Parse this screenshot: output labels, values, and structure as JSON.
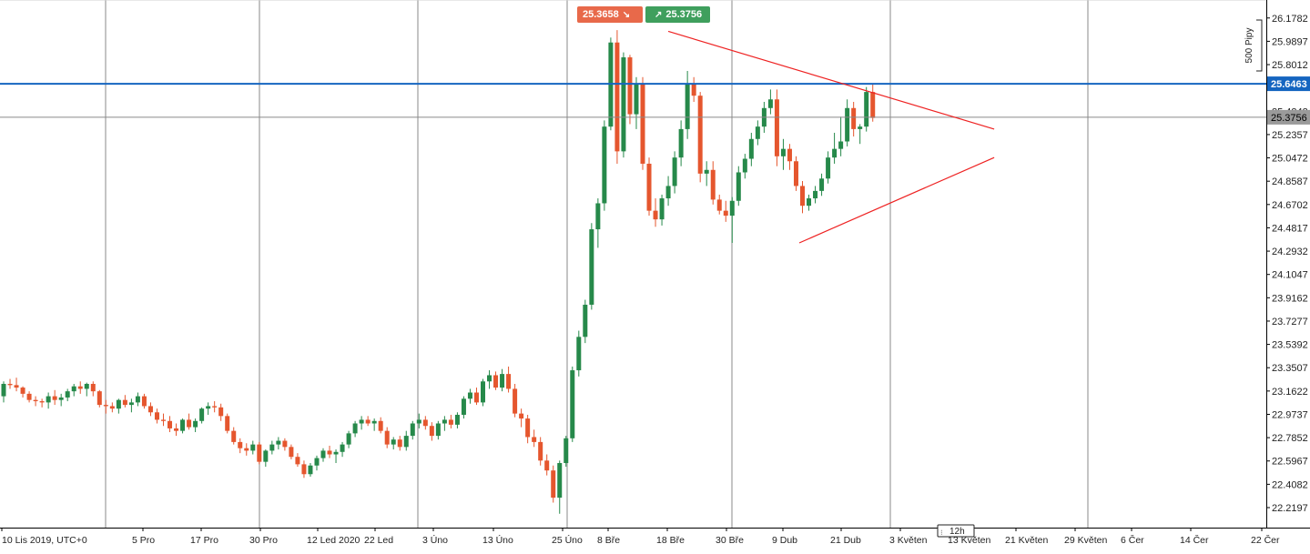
{
  "chart_data": {
    "type": "candlestick",
    "x_ticks": [
      "10 Lis 2019, UTC+0",
      "5 Pro",
      "17 Pro",
      "30 Pro",
      "12 Led 2020",
      "22 Led",
      "3 Úno",
      "13 Úno",
      "25 Úno",
      "8 Bře",
      "18 Bře",
      "30 Bře",
      "9 Dub",
      "21 Dub",
      "3 Květen",
      "13 Květen",
      "21 Květen",
      "29 Květen",
      "6 Čer",
      "14 Čer",
      "22 Čer"
    ],
    "y_ticks": [
      "26.1782",
      "25.9897",
      "25.8012",
      "25.6463",
      "25.4242",
      "25.3756",
      "25.2357",
      "25.0472",
      "24.8587",
      "24.6702",
      "24.4817",
      "24.2932",
      "24.1047",
      "23.9162",
      "23.7277",
      "23.5392",
      "23.3507",
      "23.1622",
      "22.9737",
      "22.7852",
      "22.5967",
      "22.4082",
      "22.2197"
    ],
    "ylim": [
      22.1,
      26.3
    ],
    "timeframe": "12h",
    "pip_scale_label": "500 Pipy",
    "horizontal_level": 25.6463,
    "current_price": 25.3756,
    "sell_price": "25.3658",
    "buy_price": "25.3756",
    "candles": [
      [
        23.12,
        23.24,
        23.07,
        23.22
      ],
      [
        23.22,
        23.26,
        23.18,
        23.21
      ],
      [
        23.21,
        23.27,
        23.16,
        23.19
      ],
      [
        23.19,
        23.2,
        23.11,
        23.14
      ],
      [
        23.14,
        23.16,
        23.07,
        23.09
      ],
      [
        23.09,
        23.12,
        23.04,
        23.08
      ],
      [
        23.08,
        23.1,
        23.03,
        23.07
      ],
      [
        23.07,
        23.15,
        23.02,
        23.12
      ],
      [
        23.12,
        23.17,
        23.05,
        23.09
      ],
      [
        23.09,
        23.14,
        23.04,
        23.11
      ],
      [
        23.11,
        23.18,
        23.08,
        23.16
      ],
      [
        23.16,
        23.22,
        23.12,
        23.2
      ],
      [
        23.2,
        23.24,
        23.14,
        23.18
      ],
      [
        23.18,
        23.23,
        23.12,
        23.22
      ],
      [
        23.22,
        23.24,
        23.12,
        23.16
      ],
      [
        23.16,
        23.17,
        23.03,
        23.05
      ],
      [
        23.05,
        23.09,
        22.98,
        23.04
      ],
      [
        23.04,
        23.07,
        22.99,
        23.02
      ],
      [
        23.02,
        23.1,
        22.98,
        23.09
      ],
      [
        23.09,
        23.13,
        23.03,
        23.05
      ],
      [
        23.05,
        23.1,
        22.99,
        23.07
      ],
      [
        23.07,
        23.15,
        23.04,
        23.12
      ],
      [
        23.12,
        23.14,
        23.02,
        23.04
      ],
      [
        23.04,
        23.07,
        22.96,
        22.99
      ],
      [
        22.99,
        23.02,
        22.9,
        22.93
      ],
      [
        22.93,
        22.98,
        22.88,
        22.92
      ],
      [
        22.92,
        22.96,
        22.83,
        22.86
      ],
      [
        22.86,
        22.9,
        22.8,
        22.84
      ],
      [
        22.84,
        22.94,
        22.82,
        22.93
      ],
      [
        22.93,
        22.98,
        22.85,
        22.87
      ],
      [
        22.87,
        22.94,
        22.83,
        22.92
      ],
      [
        22.92,
        23.03,
        22.9,
        23.02
      ],
      [
        23.02,
        23.07,
        22.97,
        23.04
      ],
      [
        23.04,
        23.08,
        22.99,
        23.03
      ],
      [
        23.03,
        23.06,
        22.92,
        22.96
      ],
      [
        22.96,
        22.98,
        22.82,
        22.84
      ],
      [
        22.84,
        22.87,
        22.73,
        22.75
      ],
      [
        22.75,
        22.78,
        22.66,
        22.7
      ],
      [
        22.7,
        22.74,
        22.64,
        22.68
      ],
      [
        22.68,
        22.76,
        22.65,
        22.73
      ],
      [
        22.73,
        22.75,
        22.57,
        22.59
      ],
      [
        22.59,
        22.69,
        22.55,
        22.68
      ],
      [
        22.68,
        22.76,
        22.65,
        22.73
      ],
      [
        22.73,
        22.79,
        22.69,
        22.76
      ],
      [
        22.76,
        22.78,
        22.68,
        22.71
      ],
      [
        22.71,
        22.73,
        22.61,
        22.63
      ],
      [
        22.63,
        22.66,
        22.55,
        22.57
      ],
      [
        22.57,
        22.6,
        22.46,
        22.49
      ],
      [
        22.49,
        22.58,
        22.47,
        22.56
      ],
      [
        22.56,
        22.64,
        22.52,
        22.62
      ],
      [
        22.62,
        22.7,
        22.59,
        22.68
      ],
      [
        22.68,
        22.72,
        22.62,
        22.65
      ],
      [
        22.65,
        22.69,
        22.58,
        22.67
      ],
      [
        22.67,
        22.75,
        22.63,
        22.73
      ],
      [
        22.73,
        22.84,
        22.7,
        22.82
      ],
      [
        22.82,
        22.92,
        22.79,
        22.9
      ],
      [
        22.9,
        22.96,
        22.85,
        22.93
      ],
      [
        22.93,
        22.96,
        22.88,
        22.9
      ],
      [
        22.9,
        22.94,
        22.84,
        22.92
      ],
      [
        22.92,
        22.95,
        22.82,
        22.84
      ],
      [
        22.84,
        22.87,
        22.7,
        22.73
      ],
      [
        22.73,
        22.79,
        22.69,
        22.77
      ],
      [
        22.77,
        22.8,
        22.68,
        22.71
      ],
      [
        22.71,
        22.84,
        22.68,
        22.8
      ],
      [
        22.8,
        22.92,
        22.77,
        22.9
      ],
      [
        22.9,
        22.98,
        22.86,
        22.93
      ],
      [
        22.93,
        22.96,
        22.85,
        22.88
      ],
      [
        22.88,
        22.91,
        22.76,
        22.8
      ],
      [
        22.8,
        22.92,
        22.77,
        22.9
      ],
      [
        22.9,
        22.96,
        22.84,
        22.93
      ],
      [
        22.93,
        22.97,
        22.86,
        22.89
      ],
      [
        22.89,
        22.99,
        22.86,
        22.97
      ],
      [
        22.97,
        23.12,
        22.94,
        23.1
      ],
      [
        23.1,
        23.18,
        23.06,
        23.15
      ],
      [
        23.15,
        23.19,
        23.05,
        23.07
      ],
      [
        23.07,
        23.26,
        23.04,
        23.24
      ],
      [
        23.24,
        23.33,
        23.18,
        23.29
      ],
      [
        23.29,
        23.32,
        23.17,
        23.19
      ],
      [
        23.19,
        23.34,
        23.16,
        23.3
      ],
      [
        23.3,
        23.36,
        23.15,
        23.18
      ],
      [
        23.18,
        23.22,
        22.95,
        22.98
      ],
      [
        22.98,
        23.02,
        22.87,
        22.94
      ],
      [
        22.94,
        22.97,
        22.74,
        22.79
      ],
      [
        22.79,
        22.85,
        22.71,
        22.75
      ],
      [
        22.75,
        22.79,
        22.56,
        22.6
      ],
      [
        22.6,
        22.65,
        22.48,
        22.52
      ],
      [
        22.52,
        22.56,
        22.26,
        22.3
      ],
      [
        22.3,
        22.6,
        22.17,
        22.58
      ],
      [
        22.58,
        22.8,
        22.55,
        22.78
      ],
      [
        22.78,
        23.36,
        22.75,
        23.33
      ],
      [
        23.33,
        23.65,
        23.28,
        23.6
      ],
      [
        23.6,
        23.9,
        23.55,
        23.86
      ],
      [
        23.86,
        24.52,
        23.82,
        24.47
      ],
      [
        24.47,
        24.72,
        24.32,
        24.68
      ],
      [
        24.68,
        25.35,
        24.62,
        25.3
      ],
      [
        25.3,
        26.02,
        25.27,
        25.98
      ],
      [
        25.98,
        26.08,
        25.0,
        25.1
      ],
      [
        25.1,
        25.9,
        25.05,
        25.86
      ],
      [
        25.86,
        25.88,
        25.32,
        25.4
      ],
      [
        25.4,
        25.7,
        25.28,
        25.65
      ],
      [
        25.65,
        25.7,
        24.95,
        25.0
      ],
      [
        25.0,
        25.05,
        24.58,
        24.62
      ],
      [
        24.62,
        24.72,
        24.49,
        24.55
      ],
      [
        24.55,
        24.75,
        24.5,
        24.72
      ],
      [
        24.72,
        24.9,
        24.66,
        24.82
      ],
      [
        24.82,
        25.1,
        24.76,
        25.05
      ],
      [
        25.05,
        25.35,
        24.98,
        25.28
      ],
      [
        25.28,
        25.75,
        25.2,
        25.65
      ],
      [
        25.65,
        25.7,
        25.5,
        25.55
      ],
      [
        25.55,
        25.58,
        24.85,
        24.92
      ],
      [
        24.92,
        25.02,
        24.82,
        24.95
      ],
      [
        24.95,
        25.02,
        24.67,
        24.71
      ],
      [
        24.71,
        24.75,
        24.59,
        24.62
      ],
      [
        24.62,
        24.7,
        24.53,
        24.58
      ],
      [
        24.58,
        24.73,
        24.36,
        24.7
      ],
      [
        24.7,
        24.98,
        24.66,
        24.93
      ],
      [
        24.93,
        25.08,
        24.88,
        25.04
      ],
      [
        25.04,
        25.25,
        24.98,
        25.2
      ],
      [
        25.2,
        25.35,
        25.15,
        25.3
      ],
      [
        25.3,
        25.5,
        25.25,
        25.45
      ],
      [
        25.45,
        25.6,
        25.4,
        25.52
      ],
      [
        25.52,
        25.6,
        24.98,
        25.06
      ],
      [
        25.06,
        25.2,
        24.95,
        25.12
      ],
      [
        25.12,
        25.16,
        24.95,
        25.02
      ],
      [
        25.02,
        25.06,
        24.78,
        24.82
      ],
      [
        24.82,
        24.86,
        24.6,
        24.66
      ],
      [
        24.66,
        24.75,
        24.62,
        24.72
      ],
      [
        24.72,
        24.82,
        24.68,
        24.78
      ],
      [
        24.78,
        24.92,
        24.74,
        24.88
      ],
      [
        24.88,
        25.1,
        24.84,
        25.05
      ],
      [
        25.05,
        25.25,
        25.0,
        25.12
      ],
      [
        25.12,
        25.38,
        25.06,
        25.18
      ],
      [
        25.18,
        25.52,
        25.14,
        25.45
      ],
      [
        25.45,
        25.5,
        25.22,
        25.28
      ],
      [
        25.28,
        25.32,
        25.16,
        25.3
      ],
      [
        25.3,
        25.62,
        25.26,
        25.58
      ],
      [
        25.58,
        25.65,
        25.34,
        25.37
      ]
    ]
  },
  "colors": {
    "up": "#26894a",
    "down": "#e5562e",
    "level": "#1565c0",
    "trend": "#ee2222",
    "grid": "#8a8a8a"
  }
}
